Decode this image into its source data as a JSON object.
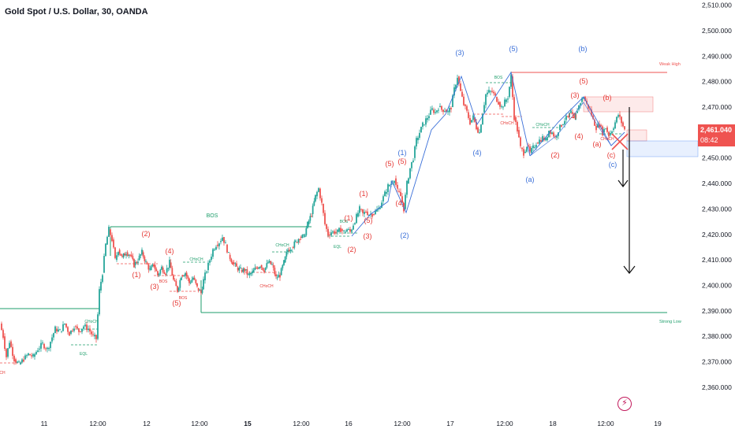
{
  "symbol_title": "Gold Spot / U.S. Dollar, 30, OANDA",
  "current_price": "2,461.040",
  "countdown": "08:42",
  "colors": {
    "up": "#26a69a",
    "down": "#ef5350",
    "wave_blue": "#3a6fd8",
    "wave_red": "#e53935",
    "bos_green": "#1e9e6b",
    "resistance": "#ef5350",
    "price_tag": "#ef5350"
  },
  "chart_data": {
    "type": "candlestick",
    "instrument": "XAUUSD",
    "timeframe": "30",
    "ylim": [
      2355,
      2512
    ],
    "y_ticks": [
      "2,510.000",
      "2,500.000",
      "2,490.000",
      "2,480.000",
      "2,470.000",
      "2,460.000",
      "2,450.000",
      "2,440.000",
      "2,430.000",
      "2,420.000",
      "2,410.000",
      "2,400.000",
      "2,390.000",
      "2,380.000",
      "2,370.000",
      "2,360.000"
    ],
    "y_tick_values": [
      2510,
      2500,
      2490,
      2480,
      2470,
      2460,
      2450,
      2440,
      2430,
      2420,
      2410,
      2400,
      2390,
      2380,
      2370,
      2360
    ],
    "x_ticks": [
      "11",
      "12:00",
      "12",
      "12:00",
      "15",
      "12:00",
      "16",
      "12:00",
      "17",
      "12:00",
      "18",
      "12:00",
      "19"
    ],
    "price_path": [
      [
        0,
        2385
      ],
      [
        4,
        2380
      ],
      [
        8,
        2372
      ],
      [
        12,
        2378
      ],
      [
        18,
        2371
      ],
      [
        24,
        2369
      ],
      [
        30,
        2371
      ],
      [
        36,
        2373
      ],
      [
        42,
        2372
      ],
      [
        48,
        2375
      ],
      [
        54,
        2377
      ],
      [
        60,
        2375
      ],
      [
        64,
        2378
      ],
      [
        70,
        2383
      ],
      [
        76,
        2382
      ],
      [
        82,
        2385
      ],
      [
        88,
        2381
      ],
      [
        94,
        2384
      ],
      [
        100,
        2382
      ],
      [
        106,
        2384
      ],
      [
        112,
        2383
      ],
      [
        118,
        2380
      ],
      [
        122,
        2379
      ],
      [
        126,
        2398
      ],
      [
        130,
        2405
      ],
      [
        134,
        2416
      ],
      [
        138,
        2422
      ],
      [
        142,
        2418
      ],
      [
        146,
        2410
      ],
      [
        150,
        2414
      ],
      [
        155,
        2411
      ],
      [
        160,
        2413
      ],
      [
        165,
        2412
      ],
      [
        170,
        2408
      ],
      [
        175,
        2410
      ],
      [
        180,
        2413
      ],
      [
        185,
        2409
      ],
      [
        190,
        2406
      ],
      [
        195,
        2408
      ],
      [
        200,
        2404
      ],
      [
        205,
        2407
      ],
      [
        210,
        2405
      ],
      [
        215,
        2409
      ],
      [
        220,
        2402
      ],
      [
        225,
        2398
      ],
      [
        230,
        2404
      ],
      [
        235,
        2405
      ],
      [
        240,
        2401
      ],
      [
        245,
        2403
      ],
      [
        250,
        2399
      ],
      [
        255,
        2397
      ],
      [
        258,
        2402
      ],
      [
        262,
        2406
      ],
      [
        266,
        2410
      ],
      [
        270,
        2414
      ],
      [
        274,
        2416
      ],
      [
        278,
        2417
      ],
      [
        282,
        2419
      ],
      [
        286,
        2416
      ],
      [
        290,
        2412
      ],
      [
        295,
        2409
      ],
      [
        300,
        2407
      ],
      [
        305,
        2406
      ],
      [
        310,
        2406
      ],
      [
        315,
        2404
      ],
      [
        320,
        2405
      ],
      [
        325,
        2407
      ],
      [
        330,
        2408
      ],
      [
        335,
        2406
      ],
      [
        340,
        2409
      ],
      [
        345,
        2408
      ],
      [
        350,
        2403
      ],
      [
        355,
        2404
      ],
      [
        360,
        2409
      ],
      [
        365,
        2414
      ],
      [
        370,
        2415
      ],
      [
        375,
        2417
      ],
      [
        380,
        2419
      ],
      [
        385,
        2419
      ],
      [
        390,
        2424
      ],
      [
        395,
        2428
      ],
      [
        400,
        2435
      ],
      [
        404,
        2438
      ],
      [
        408,
        2432
      ],
      [
        412,
        2424
      ],
      [
        416,
        2420
      ],
      [
        420,
        2421
      ],
      [
        424,
        2421
      ],
      [
        428,
        2421
      ],
      [
        432,
        2422
      ],
      [
        436,
        2421
      ],
      [
        440,
        2422
      ],
      [
        444,
        2421
      ],
      [
        448,
        2424
      ],
      [
        452,
        2427
      ],
      [
        456,
        2430
      ],
      [
        460,
        2428
      ],
      [
        464,
        2429
      ],
      [
        468,
        2428
      ],
      [
        472,
        2428
      ],
      [
        476,
        2429
      ],
      [
        480,
        2430
      ],
      [
        484,
        2433
      ],
      [
        488,
        2436
      ],
      [
        492,
        2439
      ],
      [
        496,
        2440
      ],
      [
        500,
        2442
      ],
      [
        504,
        2437
      ],
      [
        508,
        2435
      ],
      [
        512,
        2430
      ],
      [
        516,
        2440
      ],
      [
        520,
        2446
      ],
      [
        524,
        2450
      ],
      [
        528,
        2457
      ],
      [
        532,
        2460
      ],
      [
        536,
        2463
      ],
      [
        540,
        2465
      ],
      [
        544,
        2467
      ],
      [
        548,
        2469
      ],
      [
        552,
        2468
      ],
      [
        556,
        2470
      ],
      [
        560,
        2469
      ],
      [
        564,
        2469
      ],
      [
        568,
        2468
      ],
      [
        572,
        2470
      ],
      [
        576,
        2477
      ],
      [
        580,
        2482
      ],
      [
        584,
        2476
      ],
      [
        588,
        2471
      ],
      [
        592,
        2468
      ],
      [
        596,
        2464
      ],
      [
        600,
        2466
      ],
      [
        604,
        2462
      ],
      [
        608,
        2460
      ],
      [
        612,
        2468
      ],
      [
        616,
        2475
      ],
      [
        620,
        2476
      ],
      [
        624,
        2476
      ],
      [
        628,
        2474
      ],
      [
        632,
        2472
      ],
      [
        636,
        2470
      ],
      [
        640,
        2472
      ],
      [
        644,
        2474
      ],
      [
        648,
        2482
      ],
      [
        652,
        2466
      ],
      [
        656,
        2461
      ],
      [
        660,
        2454
      ],
      [
        664,
        2452
      ],
      [
        668,
        2455
      ],
      [
        672,
        2452
      ],
      [
        676,
        2454
      ],
      [
        680,
        2456
      ],
      [
        684,
        2457
      ],
      [
        688,
        2458
      ],
      [
        692,
        2457
      ],
      [
        696,
        2461
      ],
      [
        700,
        2460
      ],
      [
        704,
        2458
      ],
      [
        708,
        2461
      ],
      [
        712,
        2463
      ],
      [
        716,
        2465
      ],
      [
        720,
        2466
      ],
      [
        724,
        2468
      ],
      [
        728,
        2465
      ],
      [
        732,
        2469
      ],
      [
        736,
        2472
      ],
      [
        740,
        2474
      ],
      [
        744,
        2471
      ],
      [
        748,
        2469
      ],
      [
        752,
        2465
      ],
      [
        756,
        2462
      ],
      [
        760,
        2463
      ],
      [
        764,
        2460
      ],
      [
        768,
        2462
      ],
      [
        772,
        2459
      ],
      [
        776,
        2461
      ],
      [
        780,
        2464
      ],
      [
        784,
        2467
      ],
      [
        788,
        2464
      ],
      [
        792,
        2461
      ]
    ],
    "annotations": [
      {
        "text": "BOS",
        "color": "bos_green"
      },
      {
        "text": "CHoCH",
        "color": "bos_green"
      },
      {
        "text": "EQL",
        "color": "bos_green"
      },
      {
        "text": "Weak High",
        "color": "down"
      },
      {
        "text": "Strong Low",
        "color": "bos_green"
      }
    ]
  }
}
